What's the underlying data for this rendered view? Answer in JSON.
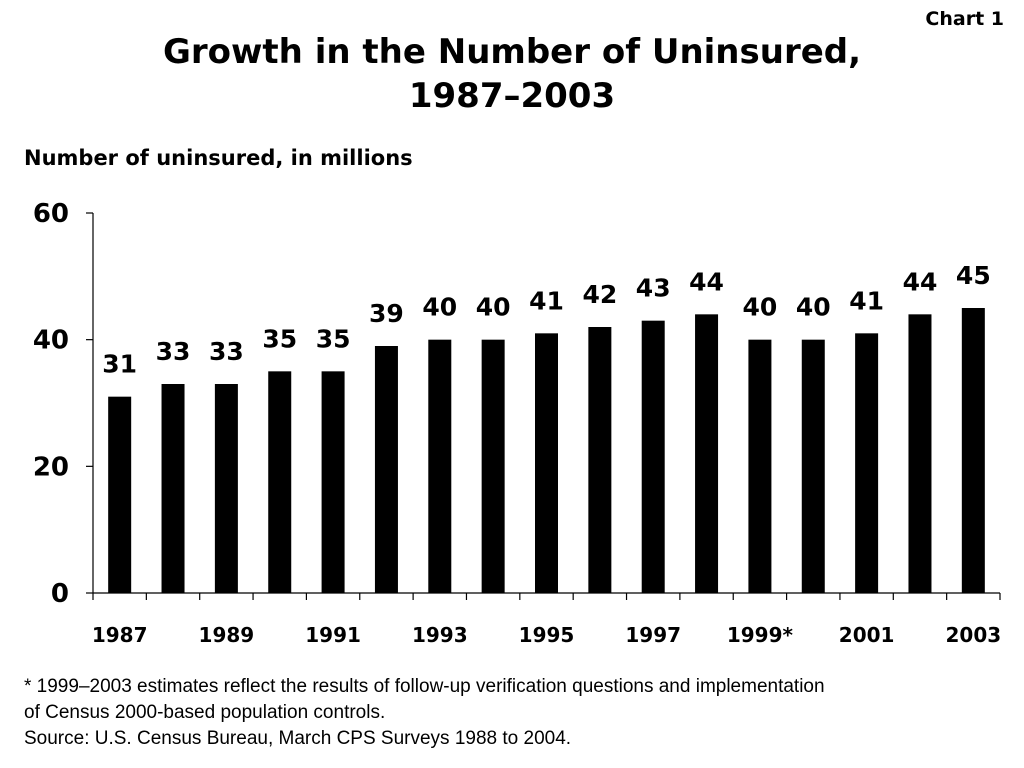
{
  "chart_label": "Chart 1",
  "title_line1": "Growth in the Number of Uninsured,",
  "title_line2": "1987–2003",
  "footnote": {
    "note_line1": "* 1999–2003 estimates reflect the results of follow-up verification questions and implementation",
    "note_line2": "of Census 2000-based population controls.",
    "source": "Source: U.S. Census Bureau, March CPS Surveys 1988 to 2004."
  },
  "chart_data": {
    "type": "bar",
    "title": "Growth in the Number of Uninsured, 1987–2003",
    "ylabel": "Number of uninsured, in millions",
    "xlabel": "",
    "ylim": [
      0,
      60
    ],
    "yticks": [
      0,
      20,
      40,
      60
    ],
    "categories": [
      "1987",
      "1988",
      "1989",
      "1990",
      "1991",
      "1992",
      "1993",
      "1994",
      "1995",
      "1996",
      "1997",
      "1998",
      "1999",
      "2000",
      "2001",
      "2002",
      "2003"
    ],
    "x_tick_labels": [
      "1987",
      "",
      "1989",
      "",
      "1991",
      "",
      "1993",
      "",
      "1995",
      "",
      "1997",
      "",
      "1999*",
      "",
      "2001",
      "",
      "2003"
    ],
    "values": [
      31,
      33,
      33,
      35,
      35,
      39,
      40,
      40,
      41,
      42,
      43,
      44,
      40,
      40,
      41,
      44,
      45
    ],
    "data_labels": [
      "31",
      "33",
      "33",
      "35",
      "35",
      "39",
      "40",
      "40",
      "41",
      "42",
      "43",
      "44",
      "40",
      "40",
      "41",
      "44",
      "45"
    ],
    "bar_color": "#000000",
    "grid": false,
    "legend": "none"
  }
}
